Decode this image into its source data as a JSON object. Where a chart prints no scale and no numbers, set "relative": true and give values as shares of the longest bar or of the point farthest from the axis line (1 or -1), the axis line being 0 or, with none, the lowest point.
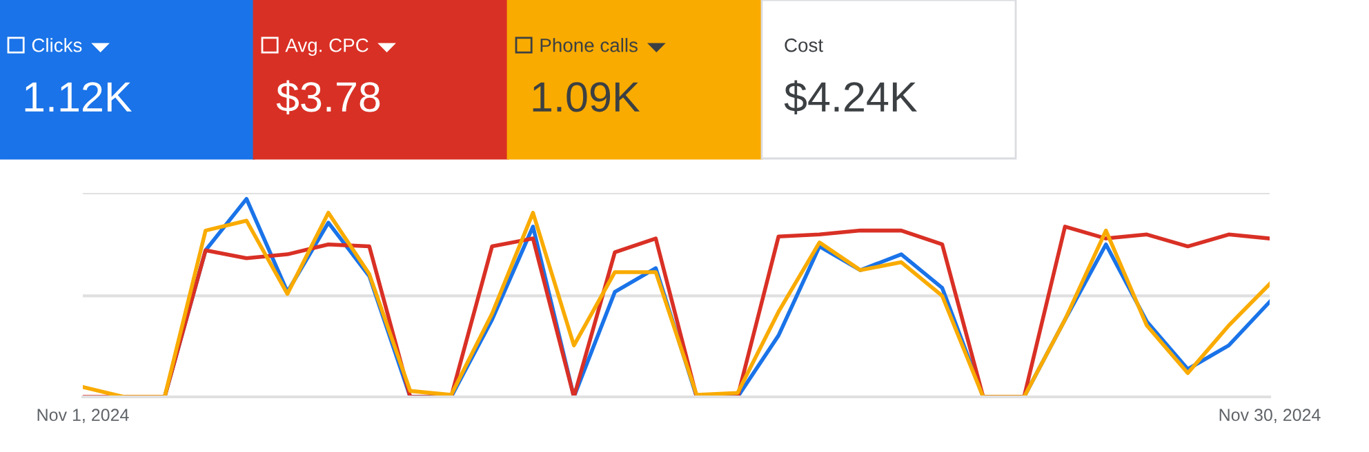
{
  "chart_data": {
    "type": "line",
    "relative": true,
    "legend": "top",
    "ref_lines": [
      {
        "axis": "y",
        "value": 0.51,
        "color": "#e0e0e0"
      },
      {
        "axis": "y",
        "value": 1.03,
        "color": "#e0e0e0"
      }
    ],
    "marker": "none",
    "line_style": "solid",
    "x": [
      "2024-11-01",
      "2024-11-02",
      "2024-11-03",
      "2024-11-04",
      "2024-11-05",
      "2024-11-06",
      "2024-11-07",
      "2024-11-08",
      "2024-11-09",
      "2024-11-10",
      "2024-11-11",
      "2024-11-12",
      "2024-11-13",
      "2024-11-14",
      "2024-11-15",
      "2024-11-16",
      "2024-11-17",
      "2024-11-18",
      "2024-11-19",
      "2024-11-20",
      "2024-11-21",
      "2024-11-22",
      "2024-11-23",
      "2024-11-24",
      "2024-11-25",
      "2024-11-26",
      "2024-11-27",
      "2024-11-28",
      "2024-11-29",
      "2024-11-30"
    ],
    "xlim": [
      "2024-11-01",
      "2024-11-30"
    ],
    "xticks": [
      {
        "value": "2024-11-01",
        "label": "Nov 1, 2024"
      },
      {
        "value": "2024-11-30",
        "label": "Nov 30, 2024"
      }
    ],
    "series": [
      {
        "name": "Clicks",
        "color": "#1a73e8",
        "values": [
          null,
          null,
          0,
          0.74,
          1,
          0.53,
          0.88,
          0.61,
          0,
          0,
          0.39,
          0.86,
          0,
          0.53,
          0.65,
          0,
          0,
          0.31,
          0.76,
          0.64,
          0.72,
          0.55,
          0,
          0,
          0.39,
          0.77,
          0.38,
          0.14,
          0.26,
          0.48
        ]
      },
      {
        "name": "Avg. CPC",
        "color": "#d93025",
        "values": [
          0,
          0,
          0,
          0.74,
          0.7,
          0.72,
          0.77,
          0.76,
          0,
          0,
          0.76,
          0.8,
          0,
          0.73,
          0.8,
          0,
          0,
          0.81,
          0.82,
          0.84,
          0.84,
          0.77,
          0,
          0,
          0.86,
          0.8,
          0.82,
          0.76,
          0.82,
          0.8
        ]
      },
      {
        "name": "Phone calls",
        "color": "#f9ab00",
        "values": [
          0.05,
          0,
          0,
          0.84,
          0.89,
          0.52,
          0.93,
          0.62,
          0.03,
          0.01,
          0.42,
          0.93,
          0.26,
          0.63,
          0.63,
          0.01,
          0.02,
          0.43,
          0.78,
          0.64,
          0.68,
          0.51,
          0,
          0,
          0.39,
          0.84,
          0.36,
          0.12,
          0.36,
          0.57
        ]
      }
    ],
    "annotations": [
      "1.12K",
      "$3.78",
      "1.09K",
      "Cost",
      "$4.24K"
    ]
  }
}
